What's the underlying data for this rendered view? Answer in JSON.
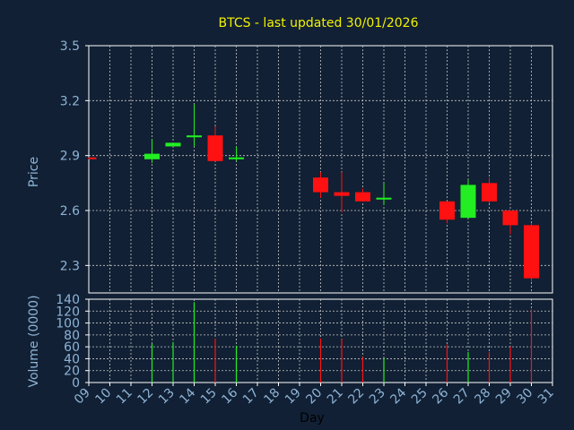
{
  "chart_data": [
    {
      "type": "candlestick",
      "title": "BTCS - last updated 30/01/2026",
      "ylabel": "Price",
      "xlabel": "",
      "ylim": [
        2.15,
        3.5
      ],
      "yticks": [
        "3.5",
        "3.2",
        "2.9",
        "2.6",
        "2.3"
      ],
      "ytick_values": [
        3.5,
        3.2,
        2.9,
        2.6,
        2.3
      ],
      "grid": true,
      "colors": {
        "up": "#22ee22",
        "down": "#ff1111",
        "background": "#112034",
        "grid": "#c8c8c8"
      },
      "candles": [
        {
          "day": 9,
          "open": 2.89,
          "high": 2.89,
          "low": 2.88,
          "close": 2.88
        },
        {
          "day": 12,
          "open": 2.88,
          "high": 2.99,
          "low": 2.86,
          "close": 2.91
        },
        {
          "day": 13,
          "open": 2.95,
          "high": 2.97,
          "low": 2.95,
          "close": 2.97
        },
        {
          "day": 14,
          "open": 3.0,
          "high": 3.18,
          "low": 2.95,
          "close": 3.01
        },
        {
          "day": 15,
          "open": 3.01,
          "high": 3.06,
          "low": 2.87,
          "close": 2.87
        },
        {
          "day": 16,
          "open": 2.88,
          "high": 2.95,
          "low": 2.87,
          "close": 2.89
        },
        {
          "day": 20,
          "open": 2.78,
          "high": 2.81,
          "low": 2.67,
          "close": 2.7
        },
        {
          "day": 21,
          "open": 2.7,
          "high": 2.81,
          "low": 2.59,
          "close": 2.68
        },
        {
          "day": 22,
          "open": 2.7,
          "high": 2.72,
          "low": 2.65,
          "close": 2.65
        },
        {
          "day": 23,
          "open": 2.66,
          "high": 2.75,
          "low": 2.63,
          "close": 2.67
        },
        {
          "day": 26,
          "open": 2.65,
          "high": 2.65,
          "low": 2.53,
          "close": 2.55
        },
        {
          "day": 27,
          "open": 2.56,
          "high": 2.77,
          "low": 2.56,
          "close": 2.74
        },
        {
          "day": 28,
          "open": 2.75,
          "high": 2.78,
          "low": 2.64,
          "close": 2.65
        },
        {
          "day": 29,
          "open": 2.6,
          "high": 2.6,
          "low": 2.47,
          "close": 2.52
        },
        {
          "day": 30,
          "open": 2.52,
          "high": 2.53,
          "low": 2.21,
          "close": 2.23
        }
      ]
    },
    {
      "type": "bar",
      "title": "",
      "ylabel": "Volume (0000)",
      "xlabel": "Day",
      "ylim": [
        0,
        140
      ],
      "yticks": [
        "140",
        "120",
        "100",
        "80",
        "60",
        "40",
        "20",
        "0"
      ],
      "ytick_values": [
        140,
        120,
        100,
        80,
        60,
        40,
        20,
        0
      ],
      "xlim": [
        9,
        31
      ],
      "xticks": [
        "09",
        "10",
        "11",
        "12",
        "13",
        "14",
        "15",
        "16",
        "17",
        "18",
        "19",
        "20",
        "21",
        "22",
        "23",
        "24",
        "25",
        "26",
        "27",
        "28",
        "29",
        "30",
        "31"
      ],
      "grid": true,
      "volumes": [
        {
          "day": 9,
          "value": 0,
          "direction": "down"
        },
        {
          "day": 12,
          "value": 65,
          "direction": "up"
        },
        {
          "day": 13,
          "value": 68,
          "direction": "up"
        },
        {
          "day": 14,
          "value": 135,
          "direction": "up"
        },
        {
          "day": 15,
          "value": 74,
          "direction": "down"
        },
        {
          "day": 16,
          "value": 62,
          "direction": "up"
        },
        {
          "day": 20,
          "value": 74,
          "direction": "down"
        },
        {
          "day": 21,
          "value": 73,
          "direction": "down"
        },
        {
          "day": 22,
          "value": 43,
          "direction": "down"
        },
        {
          "day": 23,
          "value": 41,
          "direction": "up"
        },
        {
          "day": 26,
          "value": 64,
          "direction": "down"
        },
        {
          "day": 27,
          "value": 51,
          "direction": "up"
        },
        {
          "day": 28,
          "value": 51,
          "direction": "down"
        },
        {
          "day": 29,
          "value": 60,
          "direction": "down"
        },
        {
          "day": 30,
          "value": 123,
          "direction": "down"
        }
      ]
    }
  ]
}
